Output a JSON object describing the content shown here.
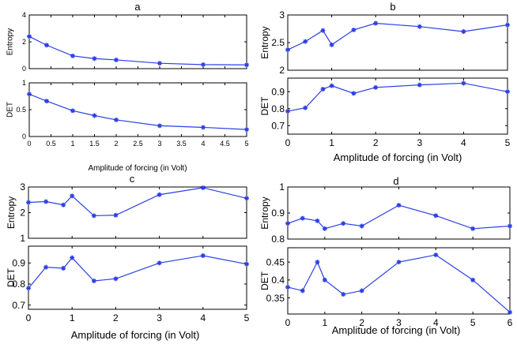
{
  "chart_data": [
    {
      "id": "a",
      "type": "line",
      "title": "a",
      "xlabel": "Amplitude of forcing (in Volt)",
      "x": [
        0,
        0.4,
        1,
        1.5,
        2,
        3,
        4,
        5
      ],
      "xlim": [
        0,
        5
      ],
      "xticks": [
        "0",
        "0.5",
        "1",
        "1.5",
        "2",
        "2.5",
        "3",
        "3.5",
        "4",
        "4.5",
        "5"
      ],
      "xtick_values": [
        0,
        0.5,
        1,
        1.5,
        2,
        2.5,
        3,
        3.5,
        4,
        4.5,
        5
      ],
      "series": [
        {
          "name": "Entropy",
          "ylabel": "Entropy",
          "ylim": [
            0,
            4
          ],
          "yticks": [
            "0",
            "2",
            "4"
          ],
          "ytick_values": [
            0,
            2,
            4
          ],
          "values": [
            2.4,
            1.75,
            0.95,
            0.75,
            0.65,
            0.4,
            0.3,
            0.28
          ]
        },
        {
          "name": "DET",
          "ylabel": "DET",
          "ylim": [
            0,
            1
          ],
          "yticks": [
            "0",
            "0.5",
            "1"
          ],
          "ytick_values": [
            0,
            0.5,
            1
          ],
          "values": [
            0.79,
            0.66,
            0.48,
            0.39,
            0.31,
            0.2,
            0.17,
            0.13
          ]
        }
      ]
    },
    {
      "id": "b",
      "type": "line",
      "title": "b",
      "xlabel": "Amplitude of forcing (in Volt)",
      "x": [
        0,
        0.4,
        0.8,
        1,
        1.5,
        2,
        3,
        4,
        5
      ],
      "xlim": [
        0,
        5
      ],
      "xticks": [
        "0",
        "1",
        "2",
        "3",
        "4",
        "5"
      ],
      "xtick_values": [
        0,
        1,
        2,
        3,
        4,
        5
      ],
      "series": [
        {
          "name": "Entropy",
          "ylabel": "Entropy",
          "ylim": [
            2,
            3
          ],
          "yticks": [
            "2",
            "2.5",
            "3"
          ],
          "ytick_values": [
            2,
            2.5,
            3
          ],
          "values": [
            2.37,
            2.52,
            2.72,
            2.46,
            2.73,
            2.85,
            2.79,
            2.7,
            2.82
          ]
        },
        {
          "name": "DET",
          "ylabel": "DET",
          "ylim": [
            0.65,
            0.98
          ],
          "yticks": [
            "0.7",
            "0.8",
            "0.9"
          ],
          "ytick_values": [
            0.7,
            0.8,
            0.9
          ],
          "values": [
            0.785,
            0.805,
            0.915,
            0.935,
            0.89,
            0.925,
            0.94,
            0.95,
            0.9
          ]
        }
      ]
    },
    {
      "id": "c",
      "type": "line",
      "title": "c",
      "xlabel": "Amplitude  of forcing (in Volt)",
      "x": [
        0,
        0.4,
        0.8,
        1,
        1.5,
        2,
        3,
        4,
        5
      ],
      "xlim": [
        0,
        5
      ],
      "xticks": [
        "0",
        "1",
        "2",
        "3",
        "4",
        "5"
      ],
      "xtick_values": [
        0,
        1,
        2,
        3,
        4,
        5
      ],
      "series": [
        {
          "name": "Entropy",
          "ylabel": "Entropy",
          "ylim": [
            1,
            3
          ],
          "yticks": [
            "1",
            "2",
            "3"
          ],
          "ytick_values": [
            1,
            2,
            3
          ],
          "values": [
            2.4,
            2.43,
            2.3,
            2.65,
            1.88,
            1.9,
            2.7,
            2.97,
            2.56
          ]
        },
        {
          "name": "DET",
          "ylabel": "DET",
          "ylim": [
            0.68,
            0.98
          ],
          "yticks": [
            "0.7",
            "0.8",
            "0.9"
          ],
          "ytick_values": [
            0.7,
            0.8,
            0.9
          ],
          "values": [
            0.78,
            0.88,
            0.875,
            0.925,
            0.815,
            0.825,
            0.9,
            0.935,
            0.895
          ]
        }
      ]
    },
    {
      "id": "d",
      "type": "line",
      "title": "d",
      "xlabel": "Amplitude of forcing (in Volt)",
      "x": [
        0,
        0.4,
        0.8,
        1,
        1.5,
        2,
        3,
        4,
        5,
        6
      ],
      "xlim": [
        0,
        6
      ],
      "xticks": [
        "0",
        "1",
        "2",
        "3",
        "4",
        "5",
        "6"
      ],
      "xtick_values": [
        0,
        1,
        2,
        3,
        4,
        5,
        6
      ],
      "series": [
        {
          "name": "Entropy",
          "ylabel": "Entropy",
          "ylim": [
            0.8,
            1
          ],
          "yticks": [
            "0.8",
            "0.9",
            "1"
          ],
          "ytick_values": [
            0.8,
            0.9,
            1
          ],
          "values": [
            0.86,
            0.88,
            0.87,
            0.84,
            0.86,
            0.85,
            0.93,
            0.89,
            0.84,
            0.85
          ]
        },
        {
          "name": "DET",
          "ylabel": "DET",
          "ylim": [
            0.305,
            0.49
          ],
          "yticks": [
            "0.35",
            "0.4",
            "0.45"
          ],
          "ytick_values": [
            0.35,
            0.4,
            0.45
          ],
          "values": [
            0.38,
            0.37,
            0.45,
            0.4,
            0.36,
            0.37,
            0.45,
            0.47,
            0.4,
            0.31
          ]
        }
      ]
    }
  ],
  "colors": {
    "line": "#2b3ee6",
    "marker": "#2b3ee6",
    "axis": "#000000",
    "background": "#ffffff"
  },
  "marker_symbol": "*"
}
